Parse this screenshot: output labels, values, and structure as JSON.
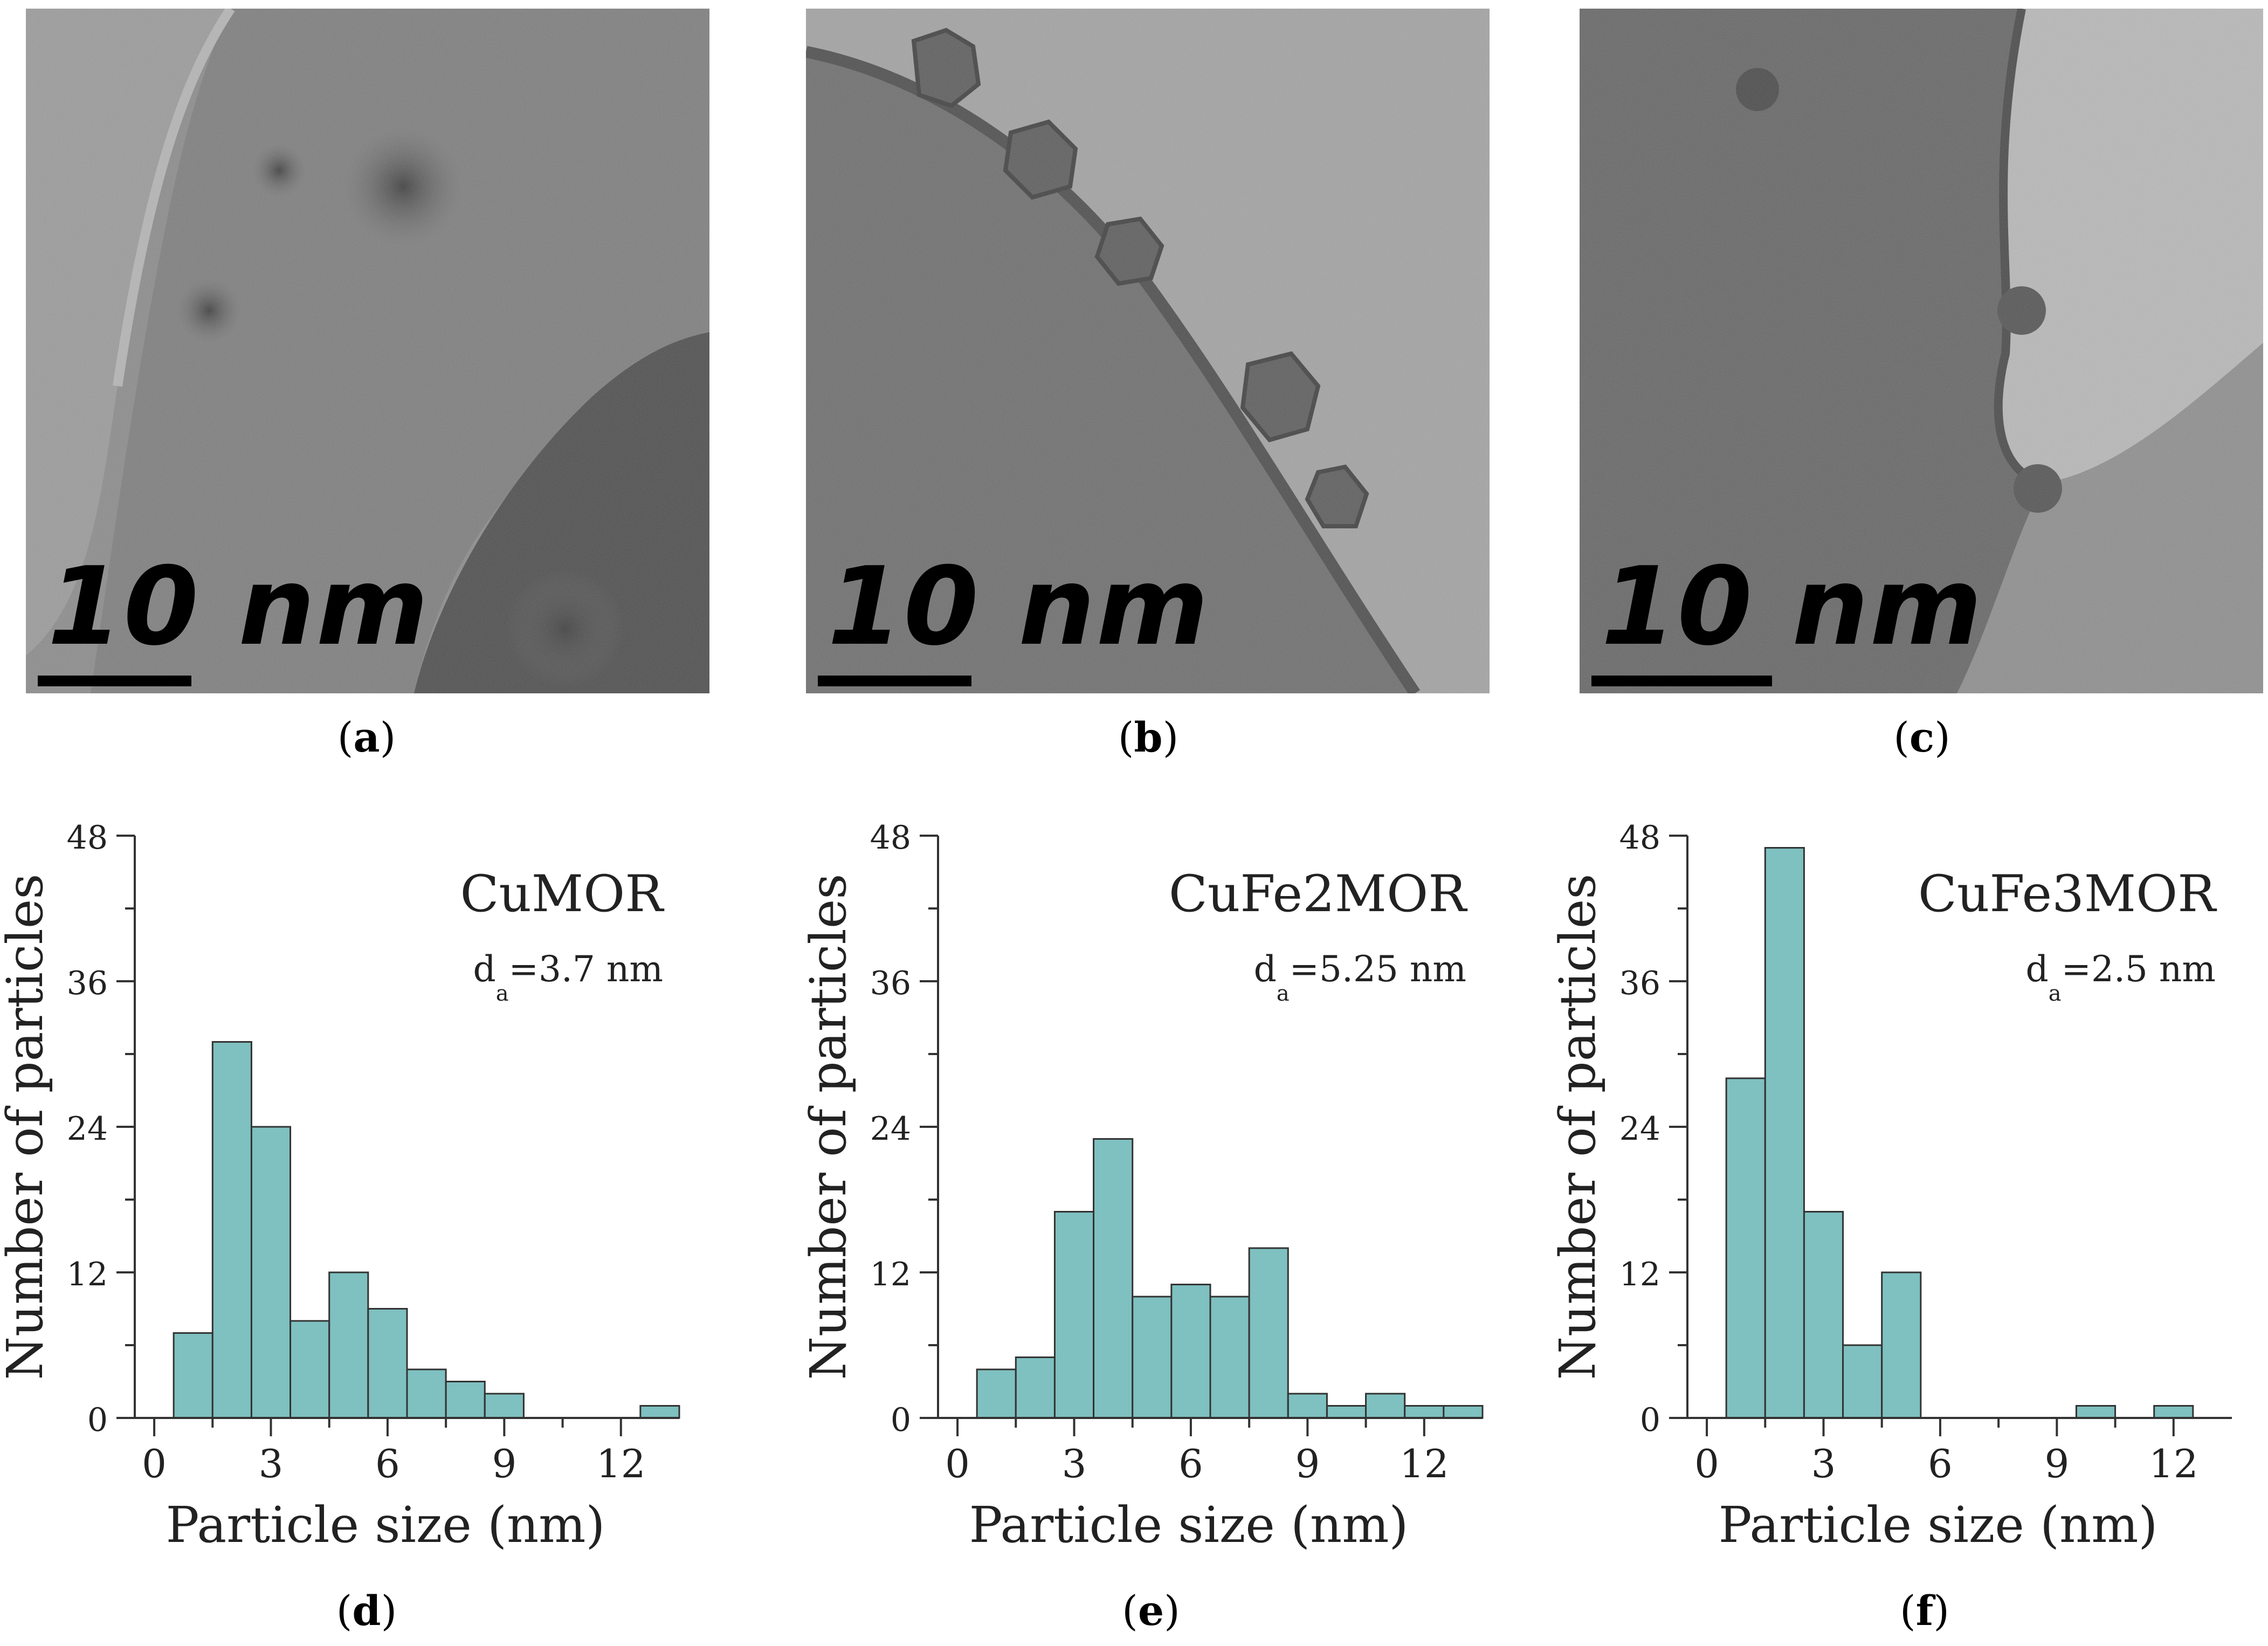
{
  "figure": {
    "panels": [
      {
        "letter": "a",
        "scale_label": "10 nm"
      },
      {
        "letter": "b",
        "scale_label": "10 nm"
      },
      {
        "letter": "c",
        "scale_label": "10 nm"
      },
      {
        "letter": "d"
      },
      {
        "letter": "e"
      },
      {
        "letter": "f"
      }
    ]
  },
  "chart_data": [
    {
      "type": "bar",
      "sample": "CuMOR",
      "annotation_prefix": "d",
      "annotation_sub": "a",
      "annotation_value": "=3.7 nm",
      "xlabel": "Particle size (nm)",
      "ylabel": "Number of particles",
      "xlim": [
        -0.5,
        13.5
      ],
      "ylim": [
        0,
        48
      ],
      "xticks": [
        0,
        3,
        6,
        9,
        12
      ],
      "yticks": [
        0,
        12,
        24,
        36,
        48
      ],
      "x": [
        1,
        2,
        3,
        4,
        5,
        6,
        7,
        8,
        9,
        13
      ],
      "values": [
        7,
        31,
        24,
        8,
        12,
        9,
        4,
        3,
        2,
        1
      ],
      "bar_color": "#7fc0c0"
    },
    {
      "type": "bar",
      "sample": "CuFe2MOR",
      "annotation_prefix": "d",
      "annotation_sub": "a",
      "annotation_value": "=5.25 nm",
      "xlabel": "Particle size (nm)",
      "ylabel": "Number of particles",
      "xlim": [
        -0.5,
        13.5
      ],
      "ylim": [
        0,
        48
      ],
      "xticks": [
        0,
        3,
        6,
        9,
        12
      ],
      "yticks": [
        0,
        12,
        24,
        36,
        48
      ],
      "x": [
        1,
        2,
        3,
        4,
        5,
        6,
        7,
        8,
        9,
        10,
        11,
        12,
        13
      ],
      "values": [
        4,
        5,
        17,
        23,
        10,
        11,
        10,
        14,
        2,
        1,
        2,
        1,
        1
      ],
      "bar_color": "#7fc0c0"
    },
    {
      "type": "bar",
      "sample": "CuFe3MOR",
      "annotation_prefix": "d",
      "annotation_sub": "a",
      "annotation_value": "=2.5 nm",
      "xlabel": "Particle size (nm)",
      "ylabel": "Number of particles",
      "xlim": [
        -0.5,
        13.5
      ],
      "ylim": [
        0,
        48
      ],
      "xticks": [
        0,
        3,
        6,
        9,
        12
      ],
      "yticks": [
        0,
        12,
        24,
        36,
        48
      ],
      "x": [
        1,
        2,
        3,
        4,
        5,
        10,
        12
      ],
      "values": [
        28,
        47,
        17,
        6,
        12,
        1,
        1
      ],
      "bar_color": "#7fc0c0"
    }
  ]
}
